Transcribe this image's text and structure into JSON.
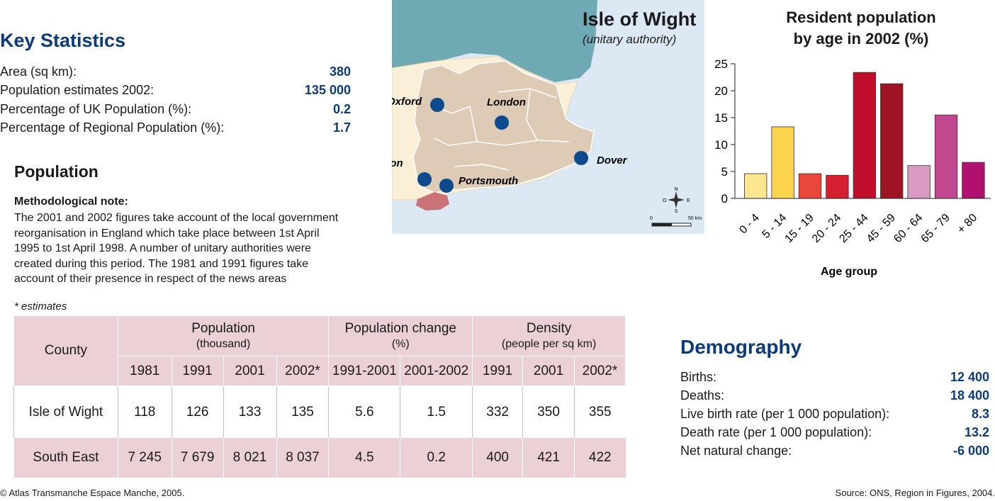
{
  "key_statistics": {
    "title": "Key Statistics",
    "rows": [
      {
        "label": "Area (sq km):",
        "value": "380"
      },
      {
        "label": "Population estimates 2002:",
        "value": "135 000"
      },
      {
        "label": "Percentage of UK Population (%):",
        "value": "0.2"
      },
      {
        "label": "Percentage of Regional Population (%):",
        "value": "1.7"
      }
    ]
  },
  "population": {
    "title": "Population",
    "note_title": "Methodological note:",
    "note_lines": [
      "The 2001 and 2002 figures take account of the local government",
      "reorganisation in England which take place between 1st April",
      "1995 to 1st April 1998. A number of unitary authorities were",
      "created during this period. The 1981 and 1991 figures take",
      "account of their presence in respect of the news areas"
    ],
    "estimates_note": "* estimates"
  },
  "table": {
    "county_header": "County",
    "groups": [
      {
        "label": "Population",
        "sub": "(thousand)"
      },
      {
        "label": "Population change",
        "sub": "(%)"
      },
      {
        "label": "Density",
        "sub": "(people per sq km)"
      }
    ],
    "columns": [
      "1981",
      "1991",
      "2001",
      "2002*",
      "1991-2001",
      "2001-2002",
      "1991",
      "2001",
      "2002*"
    ],
    "rows": [
      {
        "county": "Isle of Wight",
        "values": [
          "118",
          "126",
          "133",
          "135",
          "5.6",
          "1.5",
          "332",
          "350",
          "355"
        ]
      },
      {
        "county": "South East",
        "values": [
          "7 245",
          "7 679",
          "8 021",
          "8 037",
          "4.5",
          "0.2",
          "400",
          "421",
          "422"
        ]
      }
    ]
  },
  "map": {
    "title": "Isle of Wight",
    "subtitle": "(unitary authority)",
    "cities": [
      "Oxford",
      "London",
      "Southampton",
      "Portsmouth",
      "Dover"
    ],
    "scale_start": "0",
    "scale_end": "50 km",
    "compass": {
      "n": "N",
      "s": "S",
      "e": "E",
      "w": "O"
    },
    "colors": {
      "sea_top": "#6fa9b3",
      "sea": "#dce9f4",
      "land": "#fbf0d7",
      "region": "#ddcbb5",
      "highlight": "#c97378",
      "dot": "#0d4a8c"
    }
  },
  "chart_data": {
    "type": "bar",
    "title": "Resident population by age in 2002 (%)",
    "title_lines": [
      "Resident population",
      "by age in 2002 (%)"
    ],
    "xlabel": "Age group",
    "ylabel": "",
    "ylim": [
      0,
      25
    ],
    "yticks": [
      "0",
      "5",
      "10",
      "15",
      "20",
      "25"
    ],
    "categories": [
      "0 - 4",
      "5 - 14",
      "15 - 19",
      "20 - 24",
      "25 - 44",
      "45 - 59",
      "60 - 64",
      "65 - 79",
      "+ 80"
    ],
    "values": [
      4.6,
      13.3,
      4.6,
      4.3,
      23.4,
      21.3,
      6.1,
      15.5,
      6.7
    ],
    "colors": [
      "#fbe58f",
      "#fdd34e",
      "#e8473a",
      "#d61f2f",
      "#bf0d2c",
      "#9e1424",
      "#d99bc3",
      "#c1488f",
      "#b0106f"
    ]
  },
  "demography": {
    "title": "Demography",
    "rows": [
      {
        "label": "Births:",
        "value": "12 400"
      },
      {
        "label": "Deaths:",
        "value": "18 400"
      },
      {
        "label": "Live birth rate (per 1 000 population):",
        "value": "8.3"
      },
      {
        "label": "Death rate (per 1 000 population):",
        "value": "13.2"
      },
      {
        "label": "Net natural change:",
        "value": "-6 000"
      }
    ]
  },
  "footer": {
    "copyright": "© Atlas Transmanche Espace Manche, 2005.",
    "source": "Source: ONS, Region in Figures, 2004."
  }
}
